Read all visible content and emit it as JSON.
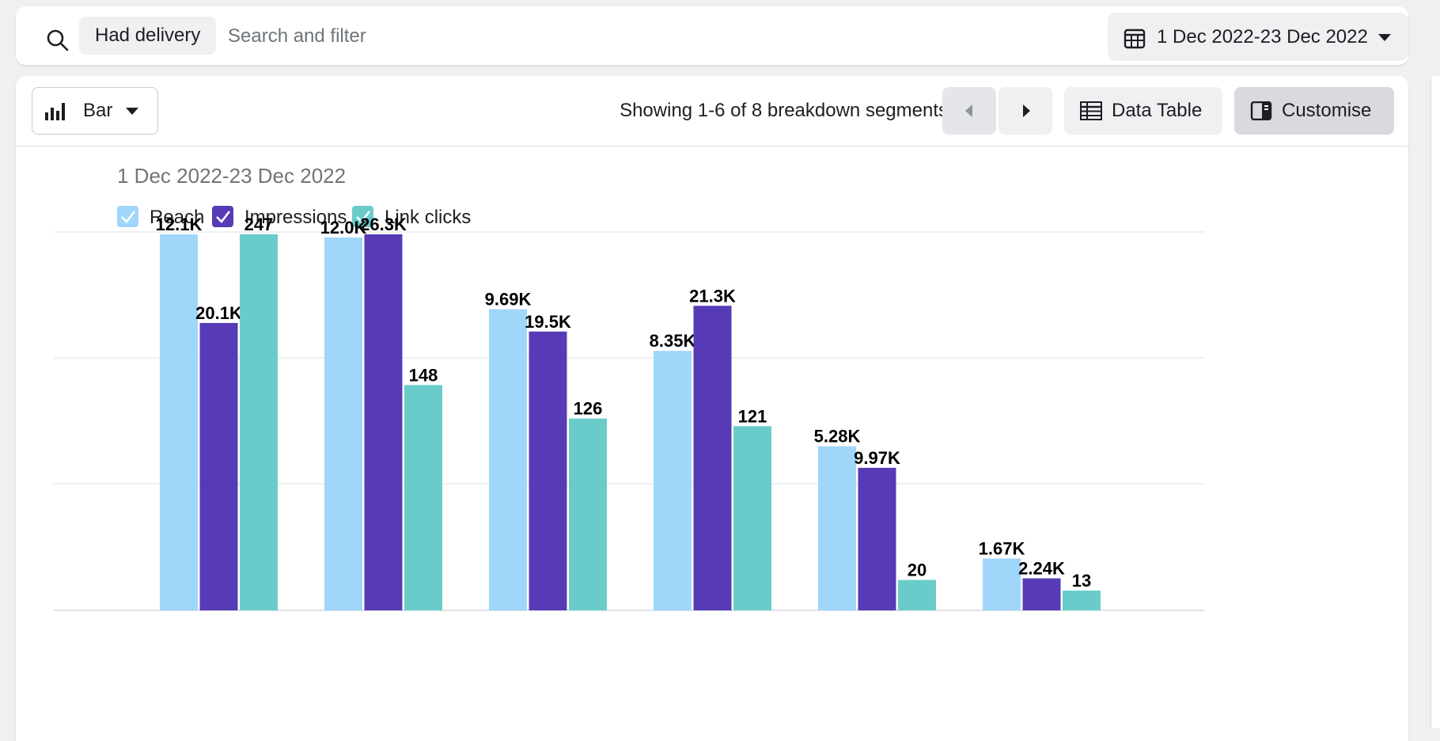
{
  "search": {
    "active_filter": "Had delivery",
    "placeholder": "Search and filter",
    "date_range": "1 Dec 2022-23 Dec 2022"
  },
  "toolbar": {
    "chart_type": "Bar",
    "showing": "Showing 1-6 of 8 breakdown segments",
    "data_table": "Data Table",
    "customise": "Customise"
  },
  "icons": {
    "search": "search-icon",
    "calendar": "calendar-icon",
    "bar_chart": "bar-chart-icon",
    "prev": "chevron-left-icon",
    "next": "chevron-right-icon",
    "table": "table-icon",
    "panel": "panel-icon"
  },
  "colors": {
    "reach": "#a0d6fa",
    "impressions": "#573ab6",
    "link_clicks": "#6accca"
  },
  "chart_data": {
    "type": "bar",
    "subtitle": "1 Dec 2022-23 Dec 2022",
    "categories": [
      "",
      "",
      "",
      "",
      "",
      ""
    ],
    "series": [
      {
        "name": "Reach",
        "values": [
          12100,
          12000,
          9690,
          8350,
          5280,
          1670
        ],
        "labels": [
          "12.1K",
          "12.0K",
          "9.69K",
          "8.35K",
          "5.28K",
          "1.67K"
        ]
      },
      {
        "name": "Impressions",
        "values": [
          20100,
          26300,
          19500,
          21300,
          9970,
          2240
        ],
        "labels": [
          "20.1K",
          "26.3K",
          "19.5K",
          "21.3K",
          "9.97K",
          "2.24K"
        ]
      },
      {
        "name": "Link clicks",
        "values": [
          247,
          148,
          126,
          121,
          20,
          13
        ],
        "labels": [
          "247",
          "148",
          "126",
          "121",
          "20",
          "13"
        ]
      }
    ],
    "legend": "top-left",
    "grid": true
  }
}
